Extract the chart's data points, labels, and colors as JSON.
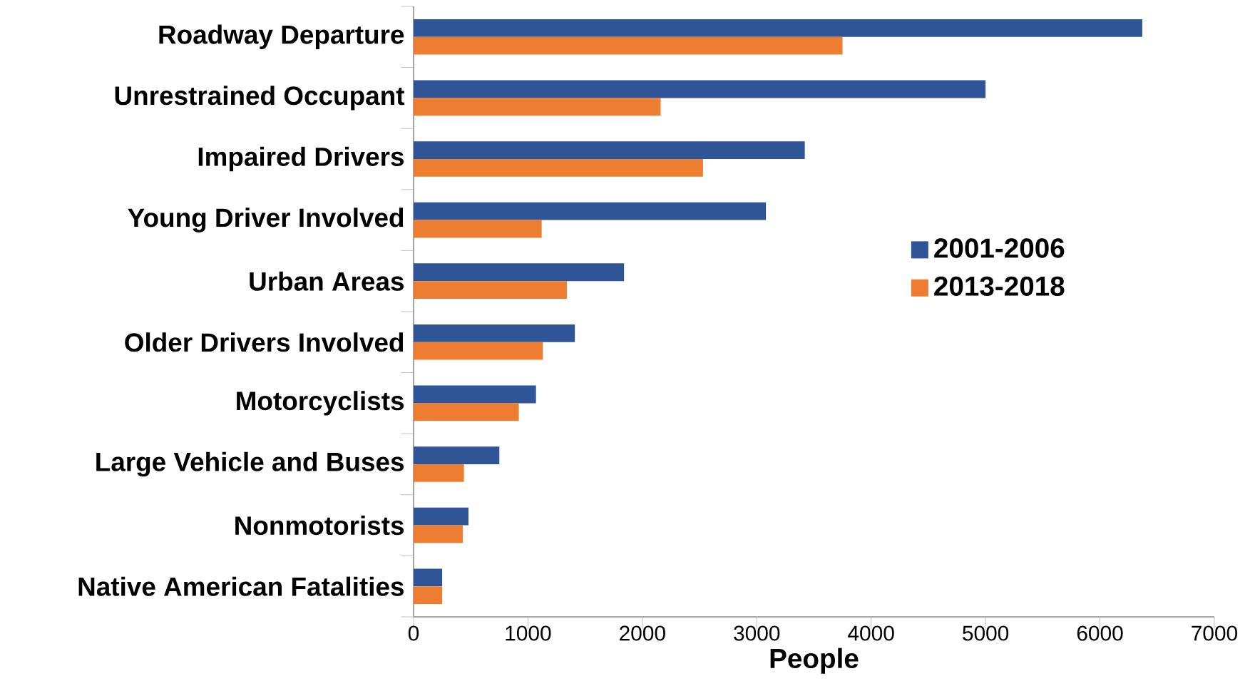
{
  "chart_data": {
    "type": "bar",
    "orientation": "horizontal",
    "xlabel": "People",
    "categories": [
      "Roadway Departure",
      "Unrestrained Occupant",
      "Impaired Drivers",
      "Young Driver Involved",
      "Urban Areas",
      "Older Drivers Involved",
      "Motorcyclists",
      "Large Vehicle and Buses",
      "Nonmotorists",
      "Native American Fatalities"
    ],
    "series": [
      {
        "name": "2001-2006",
        "color": "#2f5597",
        "values": [
          6370,
          5000,
          3420,
          3080,
          1840,
          1410,
          1070,
          750,
          480,
          250
        ]
      },
      {
        "name": "2013-2018",
        "color": "#ed7d31",
        "values": [
          3750,
          2160,
          2530,
          1120,
          1340,
          1130,
          920,
          440,
          430,
          250
        ]
      }
    ],
    "xlim": [
      0,
      7000
    ],
    "xticks": [
      0,
      1000,
      2000,
      3000,
      4000,
      5000,
      6000,
      7000
    ],
    "legend": "right",
    "grid": false
  }
}
